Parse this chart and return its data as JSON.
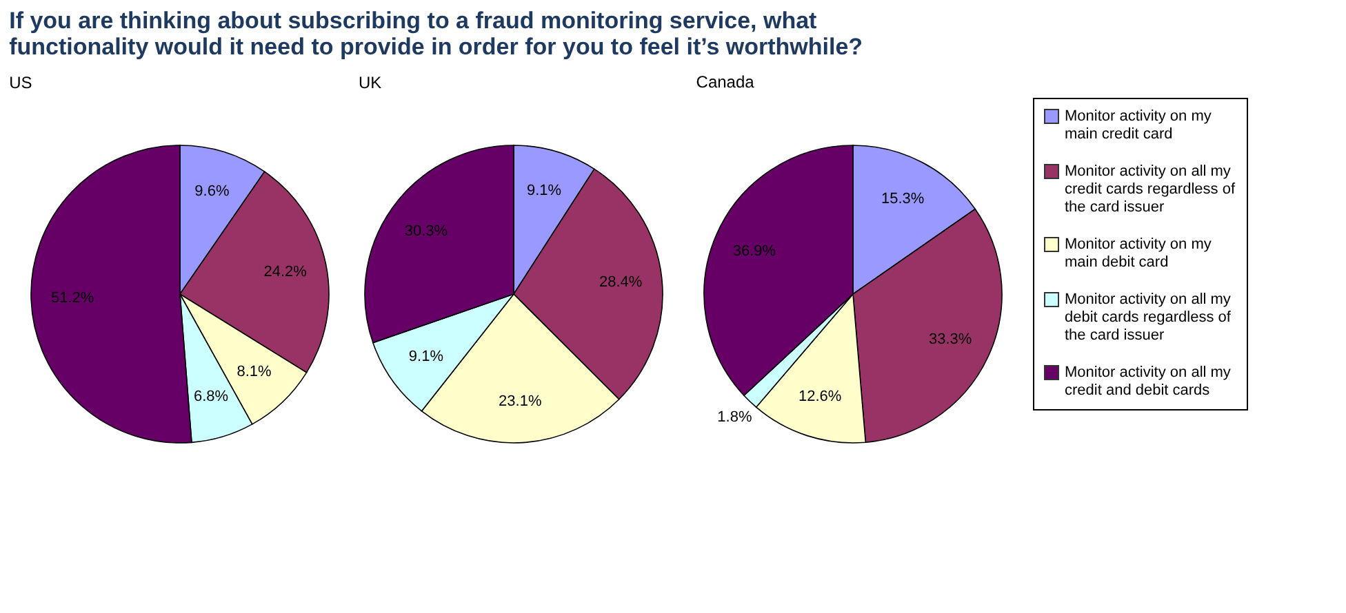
{
  "chart_data": [
    {
      "type": "other",
      "title": "If you are thinking about subscribing to a fraud monitoring service, what functionality would it need to provide in order for you to feel it’s worthwhile?"
    },
    {
      "type": "pie",
      "title": "US",
      "categories": [
        null,
        null,
        null,
        null,
        null
      ],
      "values": [
        9.6,
        24.2,
        8.1,
        6.8,
        51.2
      ],
      "value_labels": [
        "9.6%",
        "24.2%",
        "8.1%",
        "6.8%",
        "51.2%"
      ],
      "colors": [
        "#9999ff",
        "#993366",
        "#ffffcc",
        "#ccffff",
        "#660066"
      ]
    },
    {
      "type": "pie",
      "title": "UK",
      "categories": [
        null,
        null,
        null,
        null,
        null
      ],
      "values": [
        9.1,
        28.4,
        23.1,
        9.1,
        30.3
      ],
      "value_labels": [
        "9.1%",
        "28.4%",
        "23.1%",
        "9.1%",
        "30.3%"
      ],
      "colors": [
        "#9999ff",
        "#993366",
        "#ffffcc",
        "#ccffff",
        "#660066"
      ]
    },
    {
      "type": "pie",
      "title": "Canada",
      "categories": [
        "Monitor activity on my main credit card",
        "Monitor activity on all my credit cards regardless of the card issuer",
        "Monitor activity on my main debit card",
        "Monitor activity on all my debit cards regardless of the card issuer",
        "Monitor activity on all my credit and debit cards"
      ],
      "values": [
        15.3,
        33.3,
        12.6,
        1.8,
        36.9
      ],
      "value_labels": [
        "15.3%",
        "33.3%",
        "12.6%",
        "1.8%",
        "36.9%"
      ],
      "colors": [
        "#9999ff",
        "#993366",
        "#ffffcc",
        "#ccffff",
        "#660066"
      ],
      "legend": "right"
    }
  ]
}
